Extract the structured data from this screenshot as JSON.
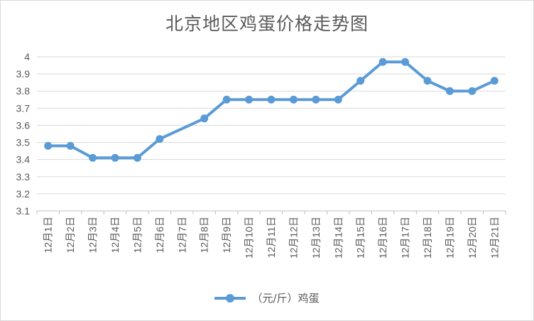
{
  "chart_data": {
    "type": "line",
    "title": "北京地区鸡蛋价格走势图",
    "categories": [
      "12月1日",
      "12月2日",
      "12月3日",
      "12月4日",
      "12月5日",
      "12月6日",
      "12月7日",
      "12月8日",
      "12月9日",
      "12月10日",
      "12月11日",
      "12月12日",
      "12月13日",
      "12月14日",
      "12月15日",
      "12月16日",
      "12月17日",
      "12月18日",
      "12月19日",
      "12月20日",
      "12月21日"
    ],
    "series": [
      {
        "name": "（元/斤）鸡蛋",
        "values": [
          3.48,
          3.48,
          3.41,
          3.41,
          3.41,
          3.52,
          null,
          3.64,
          3.75,
          3.75,
          3.75,
          3.75,
          3.75,
          3.75,
          3.86,
          3.97,
          3.97,
          3.86,
          3.8,
          3.8,
          3.86
        ],
        "color": "#5b9bd5"
      }
    ],
    "ylim": [
      3.1,
      4.0
    ],
    "yticks": [
      "3.1",
      "3.2",
      "3.3",
      "3.4",
      "3.5",
      "3.6",
      "3.7",
      "3.8",
      "3.9",
      "4"
    ],
    "grid": true,
    "legend_position": "bottom"
  }
}
